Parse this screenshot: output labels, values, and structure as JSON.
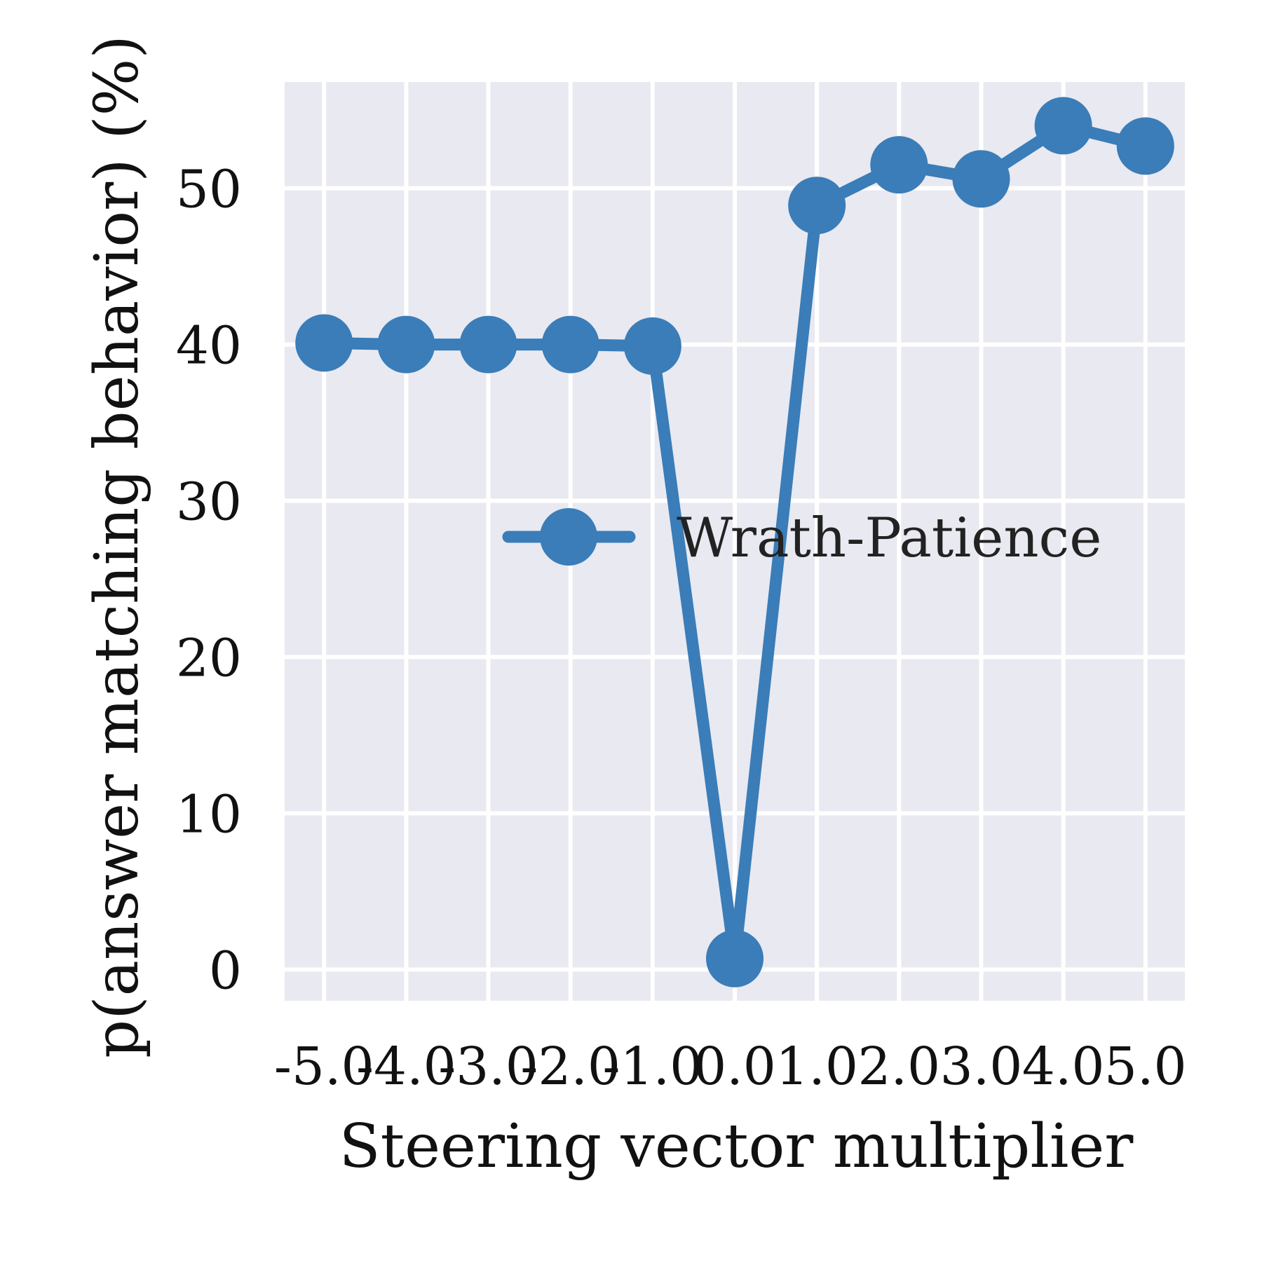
{
  "chart_data": {
    "type": "line",
    "title": "",
    "xlabel": "Steering vector multiplier",
    "ylabel": "p(answer matching behavior) (%)",
    "x": [
      -5.0,
      -4.0,
      -3.0,
      -2.0,
      -1.0,
      0.0,
      1.0,
      2.0,
      3.0,
      4.0,
      5.0
    ],
    "x_tick_labels": [
      "-5.0",
      "-4.0",
      "-3.0",
      "-2.0",
      "-1.0",
      "0.0",
      "1.0",
      "2.0",
      "3.0",
      "4.0",
      "5.0"
    ],
    "series": [
      {
        "name": "Wrath-Patience",
        "values": [
          40.1,
          40.0,
          40.0,
          40.0,
          39.9,
          0.7,
          48.9,
          51.5,
          50.6,
          54.0,
          52.7
        ]
      }
    ],
    "y_ticks": [
      0,
      10,
      20,
      30,
      40,
      50
    ],
    "y_tick_labels": [
      "0",
      "10",
      "20",
      "30",
      "40",
      "50"
    ],
    "xlim": [
      -5.48,
      5.48
    ],
    "ylim": [
      -2.0,
      56.8
    ],
    "grid": true,
    "legend_position": "center-right",
    "colors": {
      "series": "#3a7db8",
      "plot_background": "#e9e9f1",
      "grid": "#ffffff"
    }
  }
}
